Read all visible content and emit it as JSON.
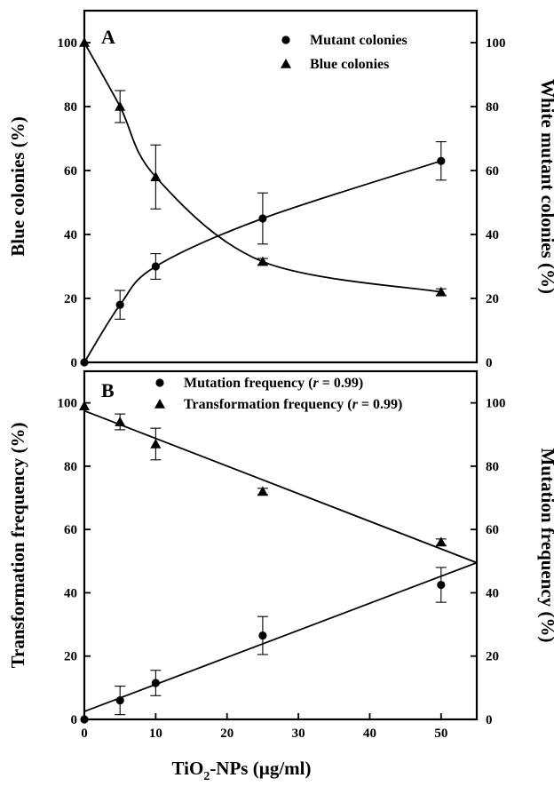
{
  "chart_data": [
    {
      "type": "line",
      "panel_label": "A",
      "xlim": [
        0,
        55
      ],
      "x_ticks": [],
      "y_left": {
        "label": "Blue colonies (%)",
        "lim": [
          0,
          110
        ],
        "ticks": [
          0,
          20,
          40,
          60,
          80,
          100
        ]
      },
      "y_right": {
        "label": "White mutant colonies (%)",
        "lim": [
          0,
          110
        ],
        "ticks": [
          0,
          20,
          40,
          60,
          80,
          100
        ]
      },
      "legend": {
        "position": "top-right"
      },
      "series": [
        {
          "name": "Mutant colonies",
          "marker": "circle",
          "x": [
            0,
            5,
            10,
            25,
            50
          ],
          "y": [
            0,
            18,
            30,
            45,
            63
          ],
          "err": [
            0,
            4.5,
            4,
            8,
            6
          ],
          "curve": "smooth"
        },
        {
          "name": "Blue colonies",
          "marker": "triangle",
          "x": [
            0,
            5,
            10,
            25,
            50
          ],
          "y": [
            100,
            80,
            58,
            31.5,
            22
          ],
          "err": [
            0,
            5,
            10,
            1,
            1
          ],
          "curve": "smooth"
        }
      ]
    },
    {
      "type": "scatter",
      "panel_label": "B",
      "xlim": [
        0,
        55
      ],
      "x_ticks": [
        0,
        10,
        20,
        30,
        40,
        50
      ],
      "xlabel_parts": [
        "TiO",
        "2",
        "-NPs (µg/ml)"
      ],
      "y_left": {
        "label": "Transformation frequency (%)",
        "lim": [
          0,
          110
        ],
        "ticks": [
          0,
          20,
          40,
          60,
          80,
          100
        ]
      },
      "y_right": {
        "label": "Mutation frequency (%)",
        "lim": [
          0,
          110
        ],
        "ticks": [
          0,
          20,
          40,
          60,
          80,
          100
        ]
      },
      "legend": {
        "position": "top-right"
      },
      "series": [
        {
          "name_parts": [
            "Mutation frequency (",
            "r",
            " = 0.99)"
          ],
          "marker": "circle",
          "x": [
            0,
            5,
            10,
            25,
            50
          ],
          "y": [
            0,
            6,
            11.5,
            26.5,
            42.5
          ],
          "err": [
            0,
            4.5,
            4,
            6,
            5.5
          ],
          "fit": [
            2.5,
            49.5
          ]
        },
        {
          "name_parts": [
            "Transformation frequency (",
            "r",
            " = 0.99)"
          ],
          "marker": "triangle",
          "x": [
            0,
            5,
            10,
            25,
            50
          ],
          "y": [
            99,
            94,
            87,
            72,
            56
          ],
          "err": [
            0,
            2.5,
            5,
            1,
            1
          ],
          "fit": [
            97.5,
            49.5
          ]
        }
      ]
    }
  ]
}
